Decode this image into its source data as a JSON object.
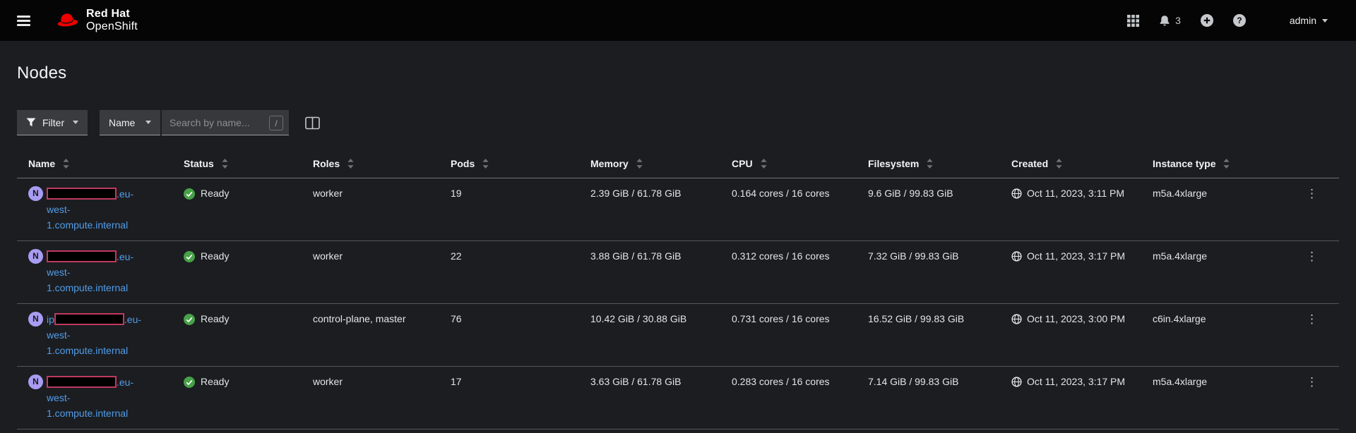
{
  "masthead": {
    "brand": {
      "line1": "Red Hat",
      "line2": "OpenShift"
    },
    "notifications": {
      "count": "3"
    },
    "user": {
      "label": "admin"
    }
  },
  "page": {
    "title": "Nodes"
  },
  "toolbar": {
    "filter": {
      "label": "Filter"
    },
    "attribute": {
      "label": "Name"
    },
    "search": {
      "placeholder": "Search by name...",
      "shortcut": "/"
    }
  },
  "table": {
    "resource_badge": "N",
    "columns": [
      {
        "label": "Name"
      },
      {
        "label": "Status"
      },
      {
        "label": "Roles"
      },
      {
        "label": "Pods"
      },
      {
        "label": "Memory"
      },
      {
        "label": "CPU"
      },
      {
        "label": "Filesystem"
      },
      {
        "label": "Created"
      },
      {
        "label": "Instance type"
      }
    ],
    "rows": [
      {
        "name": {
          "prefix": "",
          "redacted": true,
          "suffix_lines": [
            ".eu-",
            "west-",
            "1.compute.internal"
          ]
        },
        "status": "Ready",
        "roles": "worker",
        "pods": "19",
        "memory": "2.39 GiB / 61.78 GiB",
        "cpu": "0.164 cores / 16 cores",
        "filesystem": "9.6 GiB / 99.83 GiB",
        "created": "Oct 11, 2023, 3:11 PM",
        "instance_type": "m5a.4xlarge"
      },
      {
        "name": {
          "prefix": "",
          "redacted": true,
          "suffix_lines": [
            ".eu-",
            "west-",
            "1.compute.internal"
          ]
        },
        "status": "Ready",
        "roles": "worker",
        "pods": "22",
        "memory": "3.88 GiB / 61.78 GiB",
        "cpu": "0.312 cores / 16 cores",
        "filesystem": "7.32 GiB / 99.83 GiB",
        "created": "Oct 11, 2023, 3:17 PM",
        "instance_type": "m5a.4xlarge"
      },
      {
        "name": {
          "prefix": "ip",
          "redacted": true,
          "suffix_lines": [
            ".eu-",
            "west-",
            "1.compute.internal"
          ]
        },
        "status": "Ready",
        "roles": "control-plane, master",
        "pods": "76",
        "memory": "10.42 GiB / 30.88 GiB",
        "cpu": "0.731 cores / 16 cores",
        "filesystem": "16.52 GiB / 99.83 GiB",
        "created": "Oct 11, 2023, 3:00 PM",
        "instance_type": "c6in.4xlarge"
      },
      {
        "name": {
          "prefix": "",
          "redacted": true,
          "suffix_lines": [
            ".eu-",
            "west-",
            "1.compute.internal"
          ]
        },
        "status": "Ready",
        "roles": "worker",
        "pods": "17",
        "memory": "3.63 GiB / 61.78 GiB",
        "cpu": "0.283 cores / 16 cores",
        "filesystem": "7.14 GiB / 99.83 GiB",
        "created": "Oct 11, 2023, 3:17 PM",
        "instance_type": "m5a.4xlarge"
      }
    ]
  },
  "colors": {
    "link": "#519de9",
    "status_ready_green": "#48a148",
    "resource_badge_purple": "#a99cf2",
    "redaction_border": "#c0395f",
    "masthead_bg": "#050505",
    "page_bg": "#1b1d21"
  }
}
